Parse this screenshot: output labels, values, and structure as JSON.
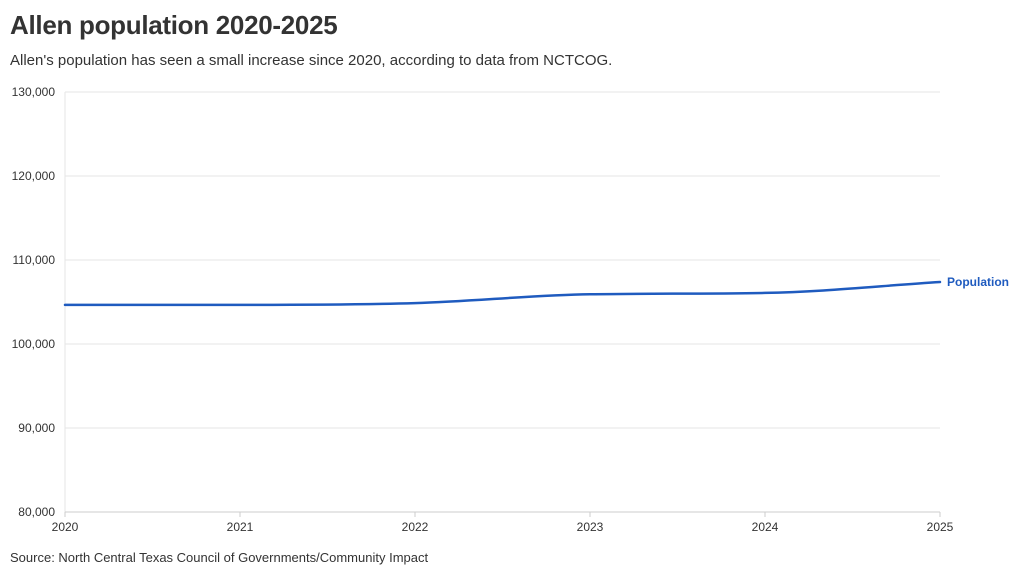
{
  "header": {
    "title": "Allen population 2020-2025",
    "subtitle": "Allen's population has seen a small increase since 2020, according to data from NCTCOG."
  },
  "footer": {
    "source": "Source: North Central Texas Council of Governments/Community Impact"
  },
  "colors": {
    "series": "#1f5bbf",
    "grid": "#e6e6e6",
    "axis": "#cccccc",
    "text": "#333333"
  },
  "chart_data": {
    "type": "line",
    "title": "Allen population 2020-2025",
    "subtitle": "Allen's population has seen a small increase since 2020, according to data from NCTCOG.",
    "xlabel": "",
    "ylabel": "",
    "x": [
      2020,
      2021,
      2022,
      2023,
      2024,
      2025
    ],
    "x_tick_labels": [
      "2020",
      "2021",
      "2022",
      "2023",
      "2024",
      "2025"
    ],
    "xlim": [
      2020,
      2025
    ],
    "y_ticks": [
      80000,
      90000,
      100000,
      110000,
      120000,
      130000
    ],
    "y_tick_labels": [
      "80,000",
      "90,000",
      "100,000",
      "110,000",
      "120,000",
      "130,000"
    ],
    "ylim": [
      80000,
      130000
    ],
    "grid": true,
    "legend": "direct label at line end",
    "series": [
      {
        "name": "Population",
        "values": [
          104660,
          104660,
          104870,
          105920,
          106080,
          107380
        ]
      }
    ]
  }
}
